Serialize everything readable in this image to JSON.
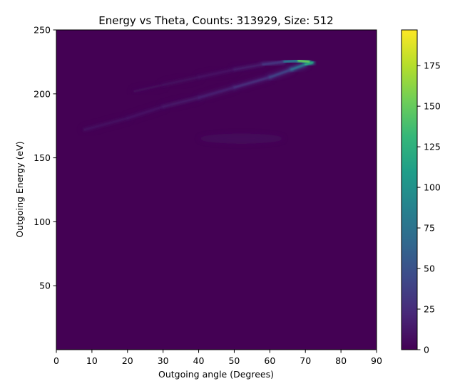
{
  "chart_data": {
    "type": "heatmap",
    "title": "Energy vs Theta, Counts: 313929, Size: 512",
    "xlabel": "Outgoing angle (Degrees)",
    "ylabel": "Outgoing Energy (eV)",
    "xlim": [
      0,
      90
    ],
    "ylim": [
      0,
      250
    ],
    "x_ticks": [
      0,
      10,
      20,
      30,
      40,
      50,
      60,
      70,
      80,
      90
    ],
    "y_ticks": [
      50,
      100,
      150,
      200,
      250
    ],
    "colorbar": {
      "range": [
        0,
        197
      ],
      "ticks": [
        0,
        25,
        50,
        75,
        100,
        125,
        150,
        175
      ],
      "colormap": "viridis",
      "colors": [
        "#440154",
        "#482878",
        "#3e4989",
        "#31688e",
        "#26828e",
        "#1f9e89",
        "#35b779",
        "#6ece58",
        "#b5de2b",
        "#fde725"
      ]
    },
    "features": [
      {
        "curve": "lower",
        "points": [
          [
            8,
            172
          ],
          [
            20,
            181
          ],
          [
            30,
            190
          ],
          [
            40,
            197
          ],
          [
            50,
            205
          ],
          [
            60,
            213
          ],
          [
            66,
            219
          ],
          [
            70,
            223
          ],
          [
            72,
            224.5
          ]
        ],
        "intensity": [
          6,
          8,
          10,
          14,
          20,
          30,
          50,
          95,
          150
        ]
      },
      {
        "curve": "upper",
        "points": [
          [
            22,
            202
          ],
          [
            30,
            207
          ],
          [
            40,
            213
          ],
          [
            50,
            219
          ],
          [
            58,
            223
          ],
          [
            64,
            225
          ],
          [
            68,
            226
          ],
          [
            71,
            225
          ]
        ],
        "intensity": [
          4,
          5,
          7,
          10,
          18,
          45,
          110,
          195
        ]
      },
      {
        "blob": "faint",
        "center": [
          52,
          165
        ],
        "radius": [
          12,
          4
        ],
        "intensity": 5
      }
    ]
  }
}
